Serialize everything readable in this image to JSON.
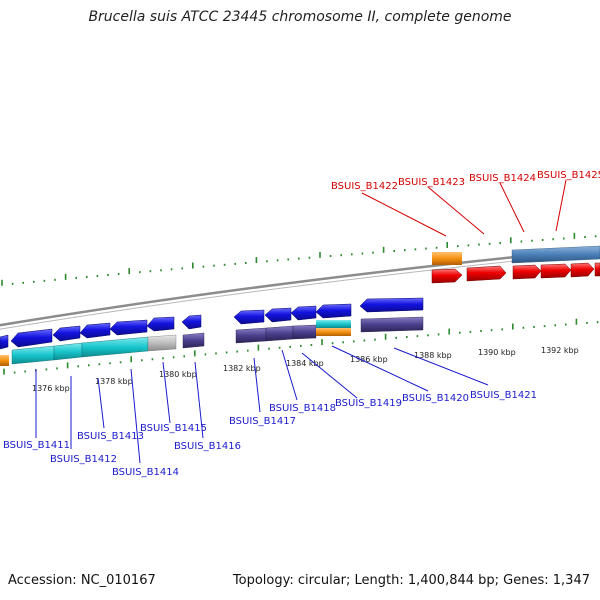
{
  "title": "Brucella suis ATCC 23445 chromosome II, complete genome",
  "footer": {
    "accession": "Accession: NC_010167",
    "summary": "Topology: circular; Length: 1,400,844 bp; Genes: 1,347"
  },
  "scale_labels": [
    "1376 kbp",
    "1378 kbp",
    "1380 kbp",
    "1382 kbp",
    "1384 kbp",
    "1386 kbp",
    "1388 kbp",
    "1390 kbp",
    "1392 kbp"
  ],
  "gene_labels_below": [
    "BSUIS_B1411",
    "BSUIS_B1412",
    "BSUIS_B1413",
    "BSUIS_B1414",
    "BSUIS_B1415",
    "BSUIS_B1416",
    "BSUIS_B1417",
    "BSUIS_B1418",
    "BSUIS_B1419",
    "BSUIS_B1420",
    "BSUIS_B1421"
  ],
  "gene_labels_above": [
    "BSUIS_B1422",
    "BSUIS_B1423",
    "BSUIS_B1424",
    "BSUIS_B1425"
  ],
  "colors": {
    "gene_blue": "#1414e0",
    "gene_red": "#ee0000",
    "gene_orange": "#f5900e",
    "gene_cyan": "#18c6cc",
    "gene_steel": "#4a7fb8",
    "gene_indigo": "#4a3f8c",
    "gene_gray": "#bdbdbd",
    "backbone": "#8c8c8c",
    "tick_green": "#2b8a2b",
    "label_blue": "#1a1acd",
    "label_red": "#d40000"
  }
}
